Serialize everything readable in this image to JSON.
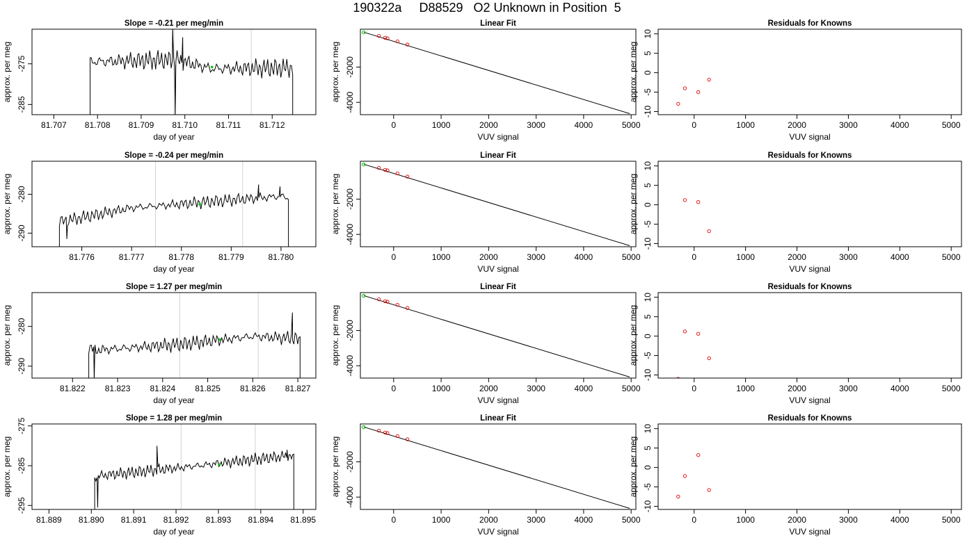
{
  "figure_title": "190322a     D88529   O2 Unknown in Position  5",
  "colors": {
    "line": "#000000",
    "vline": "#d3d3d3",
    "known": "#e00000",
    "unknown": "#00c000",
    "axis": "#000000"
  },
  "chart_data": [
    {
      "type": "line",
      "row": 1,
      "col": 1,
      "title": "Slope =  -0.21  per meg/min",
      "xlabel": "day of year",
      "ylabel": "approx. per meg",
      "xlim": [
        81.7065,
        81.713
      ],
      "ylim": [
        -287.5,
        -266.5
      ],
      "xticks": [
        81.707,
        81.708,
        81.709,
        81.71,
        81.711,
        81.712
      ],
      "xtick_labels": [
        "81.707",
        "81.708",
        "81.709",
        "81.710",
        "81.711",
        "81.712"
      ],
      "yticks": [
        -285,
        -275
      ],
      "ytick_labels": [
        "-285",
        "-275"
      ],
      "trace": {
        "x_start": 81.70783,
        "x_end": 81.71247,
        "segments": [
          [
            81.70783,
            -274.5
          ],
          [
            81.7098,
            -274.0
          ],
          [
            81.7106,
            -276.2
          ],
          [
            81.71247,
            -276.0
          ]
        ],
        "amplitude": 2.3,
        "spikes": [
          [
            81.70972,
            -266.5
          ],
          [
            81.70978,
            -288.0
          ],
          [
            81.70995,
            -268.5
          ]
        ]
      },
      "vlines": [
        81.70975,
        81.71152
      ],
      "marker": [
        81.71062,
        -275.8
      ]
    },
    {
      "type": "scatter+fit",
      "row": 1,
      "col": 2,
      "title": "Linear Fit",
      "xlabel": "VUV signal",
      "ylabel": "approx. per meg",
      "xlim": [
        -700,
        5100
      ],
      "ylim": [
        -4700,
        150
      ],
      "xticks": [
        0,
        1000,
        2000,
        3000,
        4000,
        5000
      ],
      "yticks": [
        -4000,
        -2000
      ],
      "ytick_labels": [
        "-4000",
        "-2000"
      ],
      "fit": [
        [
          -630,
          -20
        ],
        [
          4970,
          -4640
        ]
      ],
      "known_points": [
        [
          -310,
          -230
        ],
        [
          -180,
          -340
        ],
        [
          -130,
          -370
        ],
        [
          80,
          -540
        ],
        [
          290,
          -720
        ]
      ],
      "unknown_point": [
        -630,
        -30
      ]
    },
    {
      "type": "scatter",
      "row": 1,
      "col": 3,
      "title": "Residuals for Knowns",
      "xlabel": "VUV signal",
      "ylabel": "approx. per meg",
      "xlim": [
        -700,
        5200
      ],
      "ylim": [
        -10.8,
        11.2
      ],
      "xticks": [
        0,
        1000,
        2000,
        3000,
        4000,
        5000
      ],
      "yticks": [
        -10,
        -5,
        0,
        5,
        10
      ],
      "points": [
        [
          -310,
          -8.0
        ],
        [
          -180,
          -4.0
        ],
        [
          80,
          -5.0
        ],
        [
          290,
          -1.8
        ]
      ]
    },
    {
      "type": "line",
      "row": 2,
      "col": 1,
      "title": "Slope =  -0.24  per meg/min",
      "xlabel": "day of year",
      "ylabel": "approx. per meg",
      "xlim": [
        81.775,
        81.7807
      ],
      "ylim": [
        -293.5,
        -271.5
      ],
      "xticks": [
        81.776,
        81.777,
        81.778,
        81.779,
        81.78
      ],
      "xtick_labels": [
        "81.776",
        "81.777",
        "81.778",
        "81.779",
        "81.780"
      ],
      "yticks": [
        -290,
        -280
      ],
      "ytick_labels": [
        "-290",
        "-280"
      ],
      "trace": {
        "x_start": 81.77555,
        "x_end": 81.78015,
        "segments": [
          [
            81.77555,
            -287.0
          ],
          [
            81.7758,
            -286.5
          ],
          [
            81.777,
            -283.5
          ],
          [
            81.779,
            -281.5
          ],
          [
            81.78,
            -280.5
          ],
          [
            81.78015,
            -281.0
          ]
        ],
        "amplitude": 1.6,
        "spikes": [
          [
            81.7757,
            -291.5
          ],
          [
            81.77955,
            -277.5
          ],
          [
            81.77998,
            -278.0
          ]
        ]
      },
      "vlines": [
        81.77748,
        81.77923
      ],
      "marker": [
        81.77837,
        -282.6
      ]
    },
    {
      "type": "scatter+fit",
      "row": 2,
      "col": 2,
      "title": "Linear Fit",
      "xlabel": "VUV signal",
      "ylabel": "approx. per meg",
      "xlim": [
        -700,
        5100
      ],
      "ylim": [
        -4700,
        150
      ],
      "xticks": [
        0,
        1000,
        2000,
        3000,
        4000,
        5000
      ],
      "yticks": [
        -4000,
        -2000
      ],
      "ytick_labels": [
        "-4000",
        "-2000"
      ],
      "fit": [
        [
          -630,
          -20
        ],
        [
          4970,
          -4640
        ]
      ],
      "known_points": [
        [
          -310,
          -230
        ],
        [
          -180,
          -340
        ],
        [
          -130,
          -370
        ],
        [
          80,
          -540
        ],
        [
          290,
          -720
        ]
      ],
      "unknown_point": [
        -630,
        -30
      ]
    },
    {
      "type": "scatter",
      "row": 2,
      "col": 3,
      "title": "Residuals for Knowns",
      "xlabel": "VUV signal",
      "ylabel": "approx. per meg",
      "xlim": [
        -700,
        5200
      ],
      "ylim": [
        -10.8,
        11.2
      ],
      "xticks": [
        0,
        1000,
        2000,
        3000,
        4000,
        5000
      ],
      "yticks": [
        -10,
        -5,
        0,
        5,
        10
      ],
      "points": [
        [
          -180,
          1.2
        ],
        [
          80,
          0.7
        ],
        [
          290,
          -6.8
        ]
      ]
    },
    {
      "type": "line",
      "row": 3,
      "col": 1,
      "title": "Slope =  1.27  per meg/min",
      "xlabel": "day of year",
      "ylabel": "approx. per meg",
      "xlim": [
        81.8211,
        81.8274
      ],
      "ylim": [
        -293.0,
        -271.5
      ],
      "xticks": [
        81.822,
        81.823,
        81.824,
        81.825,
        81.826,
        81.827
      ],
      "xtick_labels": [
        "81.822",
        "81.823",
        "81.824",
        "81.825",
        "81.826",
        "81.827"
      ],
      "yticks": [
        -290,
        -280
      ],
      "ytick_labels": [
        "-290",
        "-280"
      ],
      "trace": {
        "x_start": 81.82236,
        "x_end": 81.82705,
        "segments": [
          [
            81.82236,
            -285.0
          ],
          [
            81.8225,
            -286.0
          ],
          [
            81.8244,
            -284.5
          ],
          [
            81.826,
            -282.5
          ],
          [
            81.8269,
            -283.0
          ],
          [
            81.82705,
            -283.5
          ]
        ],
        "amplitude": 1.8,
        "spikes": [
          [
            81.82248,
            -293.5
          ],
          [
            81.82688,
            -276.5
          ]
        ]
      },
      "vlines": [
        81.82438,
        81.82612
      ],
      "marker": [
        81.82527,
        -283.3
      ]
    },
    {
      "type": "scatter+fit",
      "row": 3,
      "col": 2,
      "title": "Linear Fit",
      "xlabel": "VUV signal",
      "ylabel": "approx. per meg",
      "xlim": [
        -700,
        5100
      ],
      "ylim": [
        -4700,
        150
      ],
      "xticks": [
        0,
        1000,
        2000,
        3000,
        4000,
        5000
      ],
      "yticks": [
        -4000,
        -2000
      ],
      "ytick_labels": [
        "-4000",
        "-2000"
      ],
      "fit": [
        [
          -630,
          -20
        ],
        [
          4970,
          -4640
        ]
      ],
      "known_points": [
        [
          -310,
          -230
        ],
        [
          -180,
          -340
        ],
        [
          -130,
          -370
        ],
        [
          80,
          -540
        ],
        [
          290,
          -720
        ]
      ],
      "unknown_point": [
        -630,
        -30
      ]
    },
    {
      "type": "scatter",
      "row": 3,
      "col": 3,
      "title": "Residuals for Knowns",
      "xlabel": "VUV signal",
      "ylabel": "approx. per meg",
      "xlim": [
        -700,
        5200
      ],
      "ylim": [
        -10.8,
        11.2
      ],
      "xticks": [
        0,
        1000,
        2000,
        3000,
        4000,
        5000
      ],
      "yticks": [
        -10,
        -5,
        0,
        5,
        10
      ],
      "points": [
        [
          -310,
          -11.0
        ],
        [
          -180,
          1.2
        ],
        [
          80,
          0.6
        ],
        [
          290,
          -5.7
        ]
      ]
    },
    {
      "type": "line",
      "row": 4,
      "col": 1,
      "title": "Slope =  1.28  per meg/min",
      "xlabel": "day of year",
      "ylabel": "approx. per meg",
      "xlim": [
        81.8886,
        81.8953
      ],
      "ylim": [
        -296.0,
        -274.5
      ],
      "xticks": [
        81.889,
        81.89,
        81.891,
        81.892,
        81.893,
        81.894,
        81.895
      ],
      "xtick_labels": [
        "81.889",
        "81.890",
        "81.891",
        "81.892",
        "81.893",
        "81.894",
        "81.895"
      ],
      "yticks": [
        -295,
        -285,
        -275
      ],
      "ytick_labels": [
        "-295",
        "-285",
        "-275"
      ],
      "trace": {
        "x_start": 81.89008,
        "x_end": 81.89478,
        "segments": [
          [
            81.89008,
            -288.0
          ],
          [
            81.8902,
            -287.5
          ],
          [
            81.8921,
            -285.5
          ],
          [
            81.8938,
            -283.5
          ],
          [
            81.89465,
            -282.5
          ],
          [
            81.89478,
            -283.0
          ]
        ],
        "amplitude": 1.5,
        "spikes": [
          [
            81.89015,
            -295.5
          ],
          [
            81.89155,
            -280.0
          ],
          [
            81.89462,
            -281.0
          ]
        ]
      },
      "vlines": [
        81.89212,
        81.89387
      ],
      "marker": [
        81.89302,
        -284.7
      ]
    },
    {
      "type": "scatter+fit",
      "row": 4,
      "col": 2,
      "title": "Linear Fit",
      "xlabel": "VUV signal",
      "ylabel": "approx. per meg",
      "xlim": [
        -700,
        5100
      ],
      "ylim": [
        -4700,
        150
      ],
      "xticks": [
        0,
        1000,
        2000,
        3000,
        4000,
        5000
      ],
      "yticks": [
        -4000,
        -2000
      ],
      "ytick_labels": [
        "-4000",
        "-2000"
      ],
      "fit": [
        [
          -630,
          -20
        ],
        [
          4970,
          -4640
        ]
      ],
      "known_points": [
        [
          -310,
          -230
        ],
        [
          -180,
          -340
        ],
        [
          -130,
          -370
        ],
        [
          80,
          -540
        ],
        [
          290,
          -720
        ]
      ],
      "unknown_point": [
        -630,
        -30
      ]
    },
    {
      "type": "scatter",
      "row": 4,
      "col": 3,
      "title": "Residuals for Knowns",
      "xlabel": "VUV signal",
      "ylabel": "approx. per meg",
      "xlim": [
        -700,
        5200
      ],
      "ylim": [
        -10.8,
        11.2
      ],
      "xticks": [
        0,
        1000,
        2000,
        3000,
        4000,
        5000
      ],
      "yticks": [
        -10,
        -5,
        0,
        5,
        10
      ],
      "points": [
        [
          -310,
          -7.5
        ],
        [
          -180,
          -2.2
        ],
        [
          80,
          3.2
        ],
        [
          290,
          -5.8
        ]
      ]
    }
  ]
}
